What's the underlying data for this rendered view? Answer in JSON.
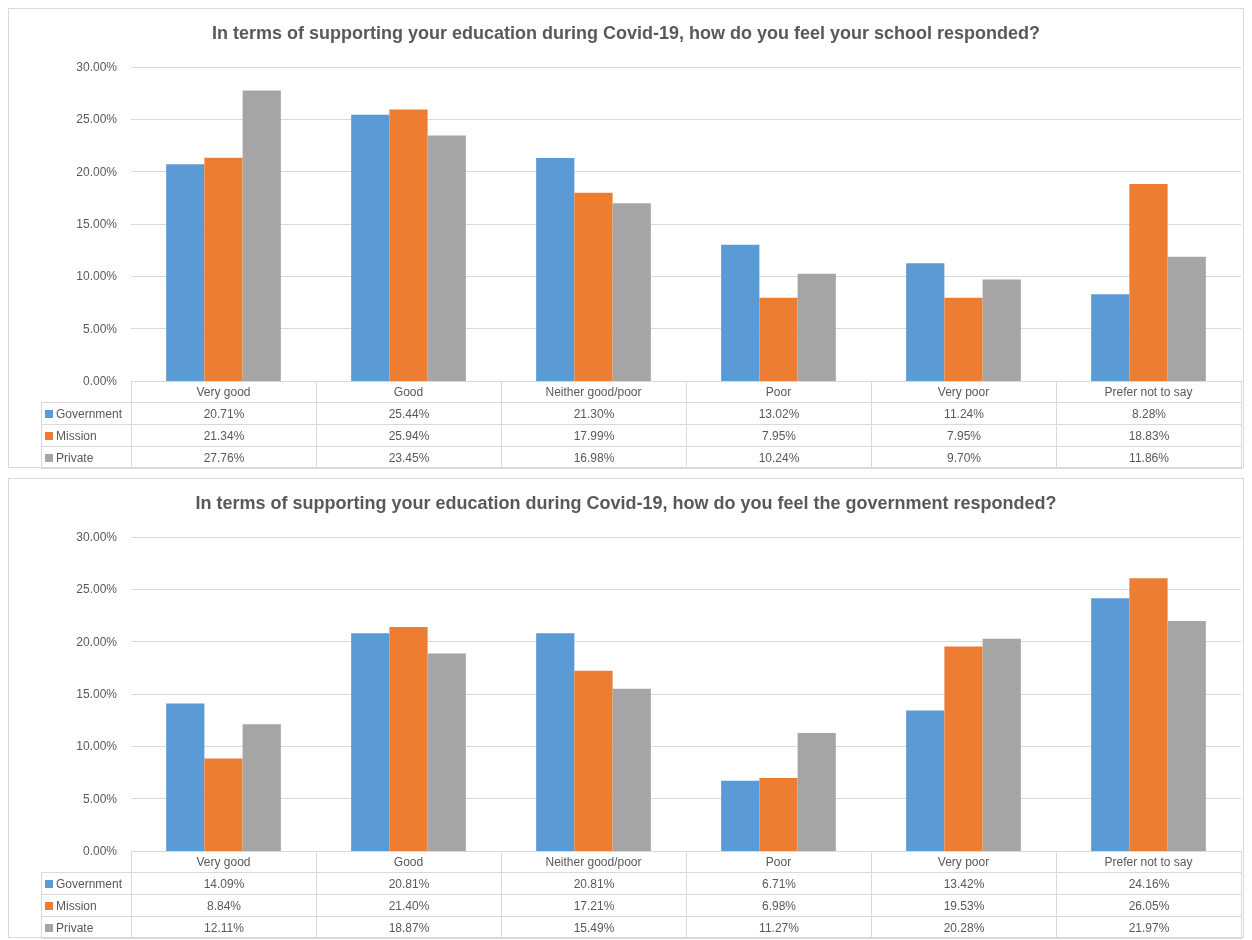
{
  "chart_data": [
    {
      "type": "bar",
      "title": "In terms of supporting your education during Covid-19, how do you feel your school responded?",
      "categories": [
        "Very good",
        "Good",
        "Neither good/poor",
        "Poor",
        "Very poor",
        "Prefer not to say"
      ],
      "series": [
        {
          "name": "Government",
          "color": "#5b9bd5",
          "values": [
            20.71,
            25.44,
            21.3,
            13.02,
            11.24,
            8.28
          ],
          "value_labels": [
            "20.71%",
            "25.44%",
            "21.30%",
            "13.02%",
            "11.24%",
            "8.28%"
          ]
        },
        {
          "name": "Mission",
          "color": "#ed7d31",
          "values": [
            21.34,
            25.94,
            17.99,
            7.95,
            7.95,
            18.83
          ],
          "value_labels": [
            "21.34%",
            "25.94%",
            "17.99%",
            "7.95%",
            "7.95%",
            "18.83%"
          ]
        },
        {
          "name": "Private",
          "color": "#a5a5a5",
          "values": [
            27.76,
            23.45,
            16.98,
            10.24,
            9.7,
            11.86
          ],
          "value_labels": [
            "27.76%",
            "23.45%",
            "16.98%",
            "10.24%",
            "9.70%",
            "11.86%"
          ]
        }
      ],
      "ylim": [
        0,
        30
      ],
      "yticks": [
        {
          "value": 0,
          "label": "0.00%"
        },
        {
          "value": 5,
          "label": "5.00%"
        },
        {
          "value": 10,
          "label": "10.00%"
        },
        {
          "value": 15,
          "label": "15.00%"
        },
        {
          "value": 20,
          "label": "20.00%"
        },
        {
          "value": 25,
          "label": "25.00%"
        },
        {
          "value": 30,
          "label": "30.00%"
        }
      ],
      "grid": "y",
      "legend": "bottom"
    },
    {
      "type": "bar",
      "title": "In terms of supporting your education during Covid-19, how do you feel the government responded?",
      "categories": [
        "Very good",
        "Good",
        "Neither good/poor",
        "Poor",
        "Very poor",
        "Prefer not to say"
      ],
      "series": [
        {
          "name": "Government",
          "color": "#5b9bd5",
          "values": [
            14.09,
            20.81,
            20.81,
            6.71,
            13.42,
            24.16
          ],
          "value_labels": [
            "14.09%",
            "20.81%",
            "20.81%",
            "6.71%",
            "13.42%",
            "24.16%"
          ]
        },
        {
          "name": "Mission",
          "color": "#ed7d31",
          "values": [
            8.84,
            21.4,
            17.21,
            6.98,
            19.53,
            26.05
          ],
          "value_labels": [
            "8.84%",
            "21.40%",
            "17.21%",
            "6.98%",
            "19.53%",
            "26.05%"
          ]
        },
        {
          "name": "Private",
          "color": "#a5a5a5",
          "values": [
            12.11,
            18.87,
            15.49,
            11.27,
            20.28,
            21.97
          ],
          "value_labels": [
            "12.11%",
            "18.87%",
            "15.49%",
            "11.27%",
            "20.28%",
            "21.97%"
          ]
        }
      ],
      "ylim": [
        0,
        30
      ],
      "yticks": [
        {
          "value": 0,
          "label": "0.00%"
        },
        {
          "value": 5,
          "label": "5.00%"
        },
        {
          "value": 10,
          "label": "10.00%"
        },
        {
          "value": 15,
          "label": "15.00%"
        },
        {
          "value": 20,
          "label": "20.00%"
        },
        {
          "value": 25,
          "label": "25.00%"
        },
        {
          "value": 30,
          "label": "30.00%"
        }
      ],
      "grid": "y",
      "legend": "bottom"
    }
  ]
}
